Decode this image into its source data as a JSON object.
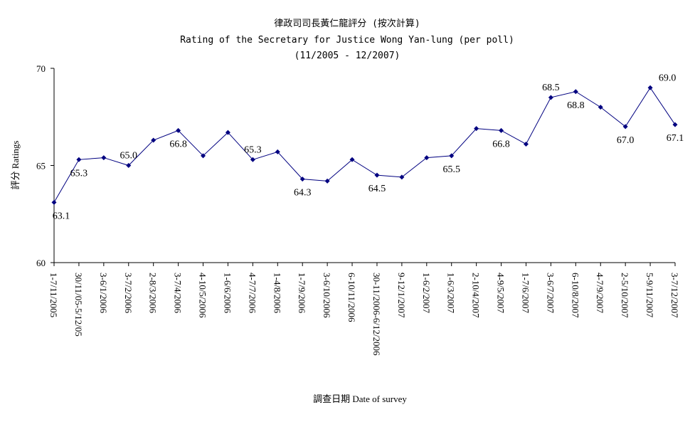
{
  "chart_data": {
    "type": "line",
    "title": "律政司司長黃仁龍評分 (按次計算)",
    "subtitle": "Rating of the Secretary for Justice Wong Yan-lung (per poll)",
    "period": "(11/2005 - 12/2007)",
    "y_label": "評分 Ratings",
    "x_label": "調查日期 Date of survey",
    "categories": [
      "1-7/11/2005",
      "30/11/05-5/12/05",
      "3-6/1/2006",
      "3-7/2/2006",
      "2-8/3/2006",
      "3-7/4/2006",
      "4-10/5/2006",
      "1-6/6/2006",
      "4-7/7/2006",
      "1-4/8/2006",
      "1-7/9/2006",
      "3-6/10/2006",
      "6-10/11/2006",
      "30-11/2006-6/12/2006",
      "9-12/1/2007",
      "1-6/2/2007",
      "1-6/3/2007",
      "2-10/4/2007",
      "4-9/5/2007",
      "1-7/6/2007",
      "3-6/7/2007",
      "6-10/8/2007",
      "4-7/9/2007",
      "2-5/10/2007",
      "5-9/11/2007",
      "3-7/12/2007"
    ],
    "series": [
      {
        "name": "Ratings",
        "color": "#000080",
        "values": [
          63.1,
          65.3,
          65.4,
          65.0,
          66.3,
          66.8,
          65.5,
          66.7,
          65.3,
          65.7,
          64.3,
          64.2,
          65.3,
          64.5,
          64.4,
          65.4,
          65.5,
          66.9,
          66.8,
          66.1,
          68.5,
          68.8,
          68.0,
          67.0,
          69.0,
          67.1
        ],
        "value_labels": [
          "63.1",
          "65.3",
          null,
          "65.0",
          null,
          "66.8",
          null,
          null,
          "65.3",
          null,
          "64.3",
          null,
          null,
          "64.5",
          null,
          null,
          "65.5",
          null,
          "66.8",
          null,
          "68.5",
          "68.8",
          null,
          "67.0",
          "69.0",
          "67.1"
        ]
      }
    ],
    "ylim": [
      60,
      70
    ],
    "yticks": [
      60,
      65,
      70
    ],
    "grid": false
  }
}
